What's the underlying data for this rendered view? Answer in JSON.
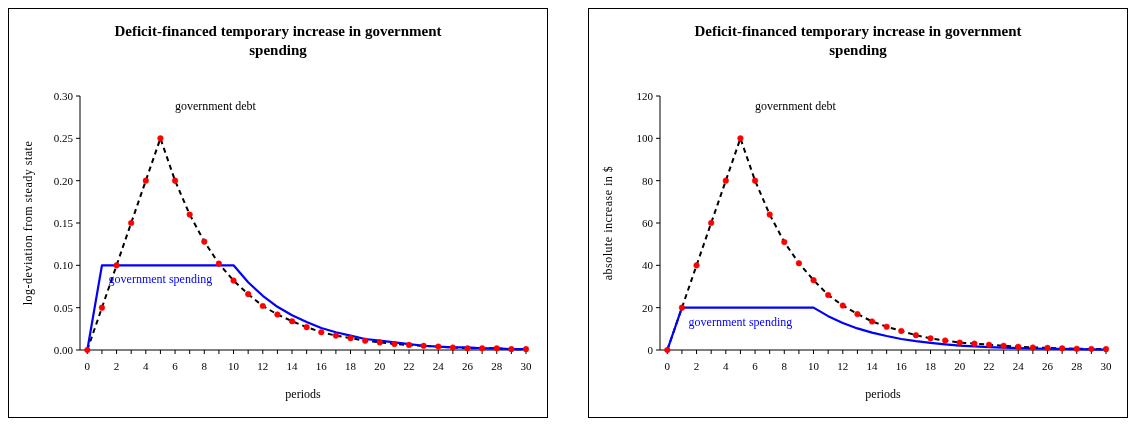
{
  "chart_data": [
    {
      "type": "line",
      "title": "Deficit-financed temporary increase in government spending",
      "xlabel": "periods",
      "ylabel": "log-deviation from steady state",
      "x": [
        0,
        1,
        2,
        3,
        4,
        5,
        6,
        7,
        8,
        9,
        10,
        11,
        12,
        13,
        14,
        15,
        16,
        17,
        18,
        19,
        20,
        21,
        22,
        23,
        24,
        25,
        26,
        27,
        28,
        29,
        30
      ],
      "xlim": [
        -0.5,
        30
      ],
      "xticks": [
        0,
        {
          "value": 1,
          "label": null
        },
        2,
        {
          "value": 3,
          "label": null
        },
        4,
        {
          "value": 5,
          "label": null
        },
        6,
        {
          "value": 7,
          "label": null
        },
        8,
        {
          "value": 9,
          "label": null
        },
        10,
        {
          "value": 11,
          "label": null
        },
        12,
        {
          "value": 13,
          "label": null
        },
        14,
        {
          "value": 15,
          "label": null
        },
        16,
        {
          "value": 17,
          "label": null
        },
        18,
        {
          "value": 19,
          "label": null
        },
        20,
        {
          "value": 21,
          "label": null
        },
        22,
        {
          "value": 23,
          "label": null
        },
        24,
        {
          "value": 25,
          "label": null
        },
        26,
        {
          "value": 27,
          "label": null
        },
        28,
        {
          "value": 29,
          "label": null
        },
        30
      ],
      "ylim": [
        0,
        0.3
      ],
      "yticks": [
        {
          "value": 0,
          "label": "0.00"
        },
        {
          "value": 0.05,
          "label": "0.05"
        },
        {
          "value": 0.1,
          "label": "0.10"
        },
        {
          "value": 0.15,
          "label": "0.15"
        },
        {
          "value": 0.2,
          "label": "0.20"
        },
        {
          "value": 0.25,
          "label": "0.25"
        },
        {
          "value": 0.3,
          "label": "0.30"
        }
      ],
      "grid": false,
      "series": [
        {
          "name": "government debt",
          "color": "#000000",
          "line_style": "dashed",
          "marker": "none",
          "values": [
            0,
            0.05,
            0.1,
            0.15,
            0.2,
            0.25,
            0.2,
            0.16,
            0.128,
            0.102,
            0.082,
            0.066,
            0.052,
            0.042,
            0.034,
            0.027,
            0.021,
            0.017,
            0.014,
            0.011,
            0.009,
            0.007,
            0.006,
            0.005,
            0.004,
            0.003,
            0.002,
            0.002,
            0.002,
            0.001,
            0.001
          ]
        },
        {
          "name": "government spending",
          "color": "#0000ff",
          "line_style": "solid",
          "marker": "none",
          "values": [
            0,
            0.1,
            0.1,
            0.1,
            0.1,
            0.1,
            0.1,
            0.1,
            0.1,
            0.1,
            0.1,
            0.08,
            0.064,
            0.051,
            0.041,
            0.033,
            0.026,
            0.021,
            0.017,
            0.013,
            0.011,
            0.009,
            0.007,
            0.005,
            0.004,
            0.003,
            0.003,
            0.002,
            0.002,
            0.001,
            0.001
          ]
        },
        {
          "type": "scatter",
          "color": "#ff0000",
          "marker": "circle",
          "values": [
            0,
            0.05,
            0.1,
            0.15,
            0.2,
            0.25,
            0.2,
            0.16,
            0.128,
            0.102,
            0.082,
            0.066,
            0.052,
            0.042,
            0.034,
            0.027,
            0.021,
            0.017,
            0.014,
            0.011,
            0.009,
            0.007,
            0.006,
            0.005,
            0.004,
            0.003,
            0.002,
            0.002,
            0.002,
            0.001,
            0.001
          ]
        }
      ]
    },
    {
      "type": "line",
      "title": "Deficit-financed temporary increase in government spending",
      "xlabel": "periods",
      "ylabel": "absolute increase in $",
      "x": [
        0,
        1,
        2,
        3,
        4,
        5,
        6,
        7,
        8,
        9,
        10,
        11,
        12,
        13,
        14,
        15,
        16,
        17,
        18,
        19,
        20,
        21,
        22,
        23,
        24,
        25,
        26,
        27,
        28,
        29,
        30
      ],
      "xlim": [
        -0.5,
        30
      ],
      "xticks": [
        0,
        {
          "value": 1,
          "label": null
        },
        2,
        {
          "value": 3,
          "label": null
        },
        4,
        {
          "value": 5,
          "label": null
        },
        6,
        {
          "value": 7,
          "label": null
        },
        8,
        {
          "value": 9,
          "label": null
        },
        10,
        {
          "value": 11,
          "label": null
        },
        12,
        {
          "value": 13,
          "label": null
        },
        14,
        {
          "value": 15,
          "label": null
        },
        16,
        {
          "value": 17,
          "label": null
        },
        18,
        {
          "value": 19,
          "label": null
        },
        20,
        {
          "value": 21,
          "label": null
        },
        22,
        {
          "value": 23,
          "label": null
        },
        24,
        {
          "value": 25,
          "label": null
        },
        26,
        {
          "value": 27,
          "label": null
        },
        28,
        {
          "value": 29,
          "label": null
        },
        30
      ],
      "ylim": [
        0,
        120
      ],
      "yticks": [
        0,
        20,
        40,
        60,
        80,
        100,
        120
      ],
      "grid": false,
      "series": [
        {
          "name": "government debt",
          "color": "#000000",
          "line_style": "dashed",
          "marker": "none",
          "values": [
            0,
            20,
            40,
            60,
            80,
            100,
            80,
            64,
            51,
            41,
            33,
            26,
            21,
            17,
            13.5,
            11,
            9,
            7,
            5.5,
            4.5,
            3.5,
            3,
            2.5,
            2,
            1.5,
            1.2,
            1,
            0.8,
            0.6,
            0.5,
            0.4
          ]
        },
        {
          "name": "government spending",
          "color": "#0000ff",
          "line_style": "solid",
          "marker": "none",
          "values": [
            0,
            20,
            20,
            20,
            20,
            20,
            20,
            20,
            20,
            20,
            20,
            16,
            12.8,
            10.2,
            8.2,
            6.6,
            5.2,
            4.2,
            3.4,
            2.7,
            2.1,
            1.7,
            1.4,
            1.1,
            0.9,
            0.7,
            0.6,
            0.5,
            0.4,
            0.3,
            0.2
          ]
        },
        {
          "type": "scatter",
          "color": "#ff0000",
          "marker": "circle",
          "values": [
            0,
            20,
            40,
            60,
            80,
            100,
            80,
            64,
            51,
            41,
            33,
            26,
            21,
            17,
            13.5,
            11,
            9,
            7,
            5.5,
            4.5,
            3.5,
            3,
            2.5,
            2,
            1.5,
            1.2,
            1,
            0.8,
            0.6,
            0.5,
            0.4
          ]
        }
      ]
    }
  ]
}
